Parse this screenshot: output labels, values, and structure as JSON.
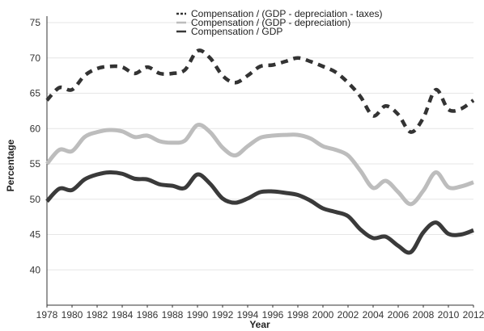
{
  "chart_data": {
    "type": "line",
    "xlabel": "Year",
    "ylabel": "Percentage",
    "xlim": [
      1978,
      2012
    ],
    "ylim": [
      35,
      75
    ],
    "xticks": [
      1978,
      1980,
      1982,
      1984,
      1986,
      1988,
      1990,
      1992,
      1994,
      1996,
      1998,
      2000,
      2002,
      2004,
      2006,
      2008,
      2010,
      2012
    ],
    "yticks": [
      40,
      45,
      50,
      55,
      60,
      65,
      70,
      75
    ],
    "grid": "horizontal",
    "legend_position": "top-right",
    "x": [
      1978,
      1979,
      1980,
      1981,
      1982,
      1983,
      1984,
      1985,
      1986,
      1987,
      1988,
      1989,
      1990,
      1991,
      1992,
      1993,
      1994,
      1995,
      1996,
      1997,
      1998,
      1999,
      2000,
      2001,
      2002,
      2003,
      2004,
      2005,
      2006,
      2007,
      2008,
      2009,
      2010,
      2011,
      2012
    ],
    "series": [
      {
        "name": "Compensation / (GDP - depreciation - taxes)",
        "color": "#333333",
        "style": "dashed",
        "values": [
          64.0,
          65.8,
          65.5,
          67.5,
          68.5,
          68.8,
          68.7,
          67.8,
          68.7,
          67.8,
          67.8,
          68.3,
          71.0,
          70.0,
          67.5,
          66.5,
          67.5,
          68.8,
          69.0,
          69.5,
          70.0,
          69.5,
          68.8,
          68.0,
          66.5,
          64.5,
          61.8,
          63.2,
          62.0,
          59.5,
          61.5,
          65.5,
          62.7,
          62.8,
          64.0
        ]
      },
      {
        "name": "Compensation / (GDP - depreciation)",
        "color": "#bdbdbd",
        "style": "solid",
        "values": [
          55.0,
          57.0,
          56.8,
          58.8,
          59.5,
          59.8,
          59.6,
          58.8,
          59.0,
          58.2,
          58.0,
          58.3,
          60.5,
          59.5,
          57.3,
          56.2,
          57.5,
          58.7,
          59.0,
          59.1,
          59.1,
          58.6,
          57.5,
          57.0,
          56.2,
          54.0,
          51.6,
          52.6,
          51.0,
          49.3,
          51.2,
          53.8,
          51.7,
          51.8,
          52.4
        ]
      },
      {
        "name": "Compensation / GDP",
        "color": "#3a3a3a",
        "style": "solid",
        "values": [
          49.7,
          51.5,
          51.3,
          52.8,
          53.5,
          53.8,
          53.6,
          52.9,
          52.8,
          52.1,
          51.9,
          51.6,
          53.5,
          52.2,
          50.1,
          49.5,
          50.1,
          51.0,
          51.1,
          50.9,
          50.6,
          49.8,
          48.7,
          48.2,
          47.6,
          45.7,
          44.5,
          44.7,
          43.4,
          42.5,
          45.3,
          46.7,
          45.1,
          45.0,
          45.6
        ]
      }
    ]
  }
}
